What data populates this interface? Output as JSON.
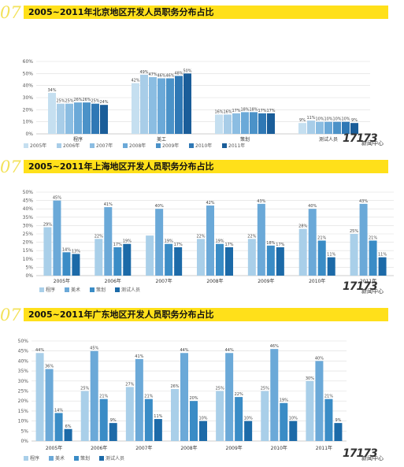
{
  "banners": [
    {
      "num": "07",
      "title": "2005~2011年北京地区开发人员职务分布占比"
    },
    {
      "num": "07",
      "title": "2005~2011年上海地区开发人员职务分布占比"
    },
    {
      "num": "07",
      "title": "2005~2011年广东地区开发人员职务分布占比"
    }
  ],
  "logo": {
    "main": "17173",
    "sub": "新闻中心"
  },
  "colors": {
    "beijing_years": [
      "#c5dff0",
      "#a8cde8",
      "#8bbde2",
      "#6ba9d8",
      "#4b92c8",
      "#2f78b5",
      "#1a5d99"
    ],
    "roles": [
      "#a9cfe9",
      "#6ba9d8",
      "#3a8cc6",
      "#1c6aa8"
    ]
  },
  "chart_data": [
    {
      "type": "bar",
      "title": "2005~2011年北京地区开发人员职务分布占比",
      "categories": [
        "程序",
        "美工",
        "策划",
        "测试人员"
      ],
      "ylim": [
        0,
        60
      ],
      "yticks": [
        "0%",
        "10%",
        "20%",
        "30%",
        "40%",
        "50%",
        "60%"
      ],
      "series": [
        {
          "name": "2005年",
          "values": [
            34,
            42,
            16,
            9
          ],
          "labels": [
            "34%",
            "42%",
            "16%",
            "9%"
          ]
        },
        {
          "name": "2006年",
          "values": [
            25,
            49,
            16,
            11
          ],
          "labels": [
            "25%",
            "49%",
            "16%",
            "11%"
          ]
        },
        {
          "name": "2007年",
          "values": [
            25,
            47,
            17,
            10
          ],
          "labels": [
            "25%",
            "47%",
            "17%",
            "10%"
          ]
        },
        {
          "name": "2008年",
          "values": [
            26,
            46,
            18,
            10
          ],
          "labels": [
            "26%",
            "46%",
            "18%",
            "10%"
          ]
        },
        {
          "name": "2009年",
          "values": [
            26,
            46,
            18,
            10
          ],
          "labels": [
            "26%",
            "46%",
            "18%",
            "10%"
          ]
        },
        {
          "name": "2010年",
          "values": [
            25,
            48,
            17,
            10
          ],
          "labels": [
            "25%",
            "48%",
            "17%",
            "10%"
          ]
        },
        {
          "name": "2011年",
          "values": [
            24,
            50,
            17,
            9
          ],
          "labels": [
            "24%",
            "50%",
            "17%",
            "9%"
          ]
        }
      ],
      "legend": "bottom-left",
      "grid": true
    },
    {
      "type": "bar",
      "title": "2005~2011年上海地区开发人员职务分布占比",
      "categories": [
        "2005年",
        "2006年",
        "2007年",
        "2008年",
        "2009年",
        "2010年",
        "2011年"
      ],
      "ylim": [
        0,
        50
      ],
      "yticks": [
        "0%",
        "5%",
        "10%",
        "15%",
        "20%",
        "25%",
        "30%",
        "35%",
        "40%",
        "45%",
        "50%"
      ],
      "series": [
        {
          "name": "程序",
          "values": [
            29,
            22,
            24,
            22,
            22,
            28,
            25
          ],
          "labels": [
            "29%",
            "22%",
            "",
            "22%",
            "22%",
            "28%",
            "25%"
          ]
        },
        {
          "name": "美术",
          "values": [
            45,
            41,
            40,
            42,
            43,
            40,
            43
          ],
          "labels": [
            "45%",
            "41%",
            "40%",
            "42%",
            "43%",
            "40%",
            "43%"
          ]
        },
        {
          "name": "策划",
          "values": [
            14,
            17,
            19,
            19,
            18,
            21,
            21
          ],
          "labels": [
            "14%",
            "17%",
            "19%",
            "19%",
            "18%",
            "21%",
            "21%"
          ]
        },
        {
          "name": "测试人员",
          "values": [
            13,
            19,
            17,
            17,
            17,
            11,
            11
          ],
          "labels": [
            "13%",
            "19%",
            "17%",
            "17%",
            "17%",
            "11%",
            "11%"
          ]
        }
      ],
      "legend": "bottom-left",
      "grid": true
    },
    {
      "type": "bar",
      "title": "2005~2011年广东地区开发人员职务分布占比",
      "categories": [
        "2005年",
        "2006年",
        "2007年",
        "2008年",
        "2009年",
        "2010年",
        "2011年"
      ],
      "ylim": [
        0,
        50
      ],
      "yticks": [
        "0%",
        "5%",
        "10%",
        "15%",
        "20%",
        "25%",
        "30%",
        "35%",
        "40%",
        "45%",
        "50%"
      ],
      "series": [
        {
          "name": "程序",
          "values": [
            44,
            25,
            27,
            26,
            25,
            25,
            30
          ],
          "labels": [
            "44%",
            "25%",
            "27%",
            "26%",
            "25%",
            "25%",
            "30%"
          ]
        },
        {
          "name": "美术",
          "values": [
            36,
            45,
            41,
            44,
            44,
            46,
            40
          ],
          "labels": [
            "36%",
            "45%",
            "41%",
            "44%",
            "44%",
            "46%",
            "40%"
          ]
        },
        {
          "name": "策划",
          "values": [
            14,
            21,
            21,
            20,
            22,
            19,
            21
          ],
          "labels": [
            "14%",
            "21%",
            "21%",
            "20%",
            "22%",
            "19%",
            "21%"
          ]
        },
        {
          "name": "测试人员",
          "values": [
            6,
            9,
            11,
            10,
            10,
            10,
            9
          ],
          "labels": [
            "6%",
            "9%",
            "11%",
            "10%",
            "10%",
            "10%",
            "9%"
          ]
        }
      ],
      "legend": "bottom-left",
      "grid": true
    }
  ]
}
